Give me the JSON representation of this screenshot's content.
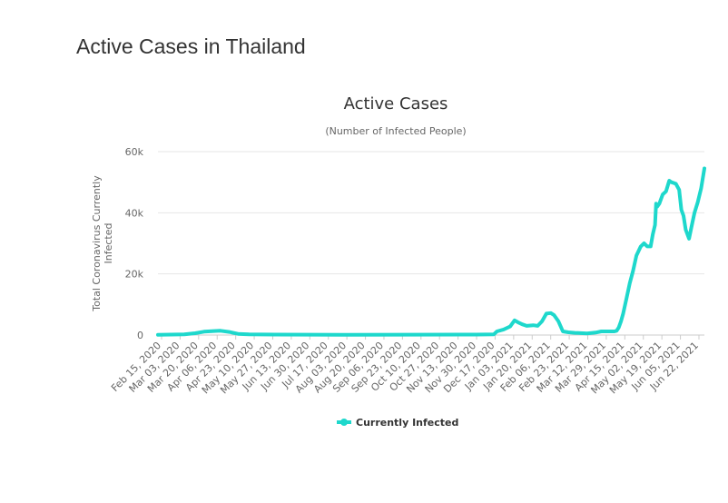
{
  "page": {
    "title": "Active Cases in Thailand"
  },
  "chart_data": {
    "type": "line",
    "title": "Active Cases",
    "subtitle": "(Number of Infected People)",
    "xlabel": "",
    "ylabel": "Total Coronavirus Currently Infected",
    "ylim": [
      0,
      60000
    ],
    "y_ticks": [
      0,
      20000,
      40000,
      60000
    ],
    "y_tick_labels": [
      "0",
      "20k",
      "40k",
      "60k"
    ],
    "x_tick_labels": [
      "Feb 15, 2020",
      "Mar 03, 2020",
      "Mar 20, 2020",
      "Apr 06, 2020",
      "Apr 23, 2020",
      "May 10, 2020",
      "May 27, 2020",
      "Jun 13, 2020",
      "Jun 30, 2020",
      "Jul 17, 2020",
      "Aug 03, 2020",
      "Aug 20, 2020",
      "Sep 06, 2020",
      "Sep 23, 2020",
      "Oct 10, 2020",
      "Oct 27, 2020",
      "Nov 13, 2020",
      "Nov 30, 2020",
      "Dec 17, 2020",
      "Jan 03, 2021",
      "Jan 20, 2021",
      "Feb 06, 2021",
      "Feb 23, 2021",
      "Mar 12, 2021",
      "Mar 29, 2021",
      "Apr 15, 2021",
      "May 02, 2021",
      "May 19, 2021",
      "Jun 05, 2021",
      "Jun 22, 2021"
    ],
    "grid": true,
    "legend_position": "bottom-center",
    "series": [
      {
        "name": "Currently Infected",
        "color": "#1ed8cc",
        "x": [
          "2020-02-15",
          "2020-03-10",
          "2020-03-20",
          "2020-03-28",
          "2020-04-06",
          "2020-04-12",
          "2020-04-20",
          "2020-04-28",
          "2020-05-08",
          "2020-06-01",
          "2020-08-01",
          "2020-10-01",
          "2020-12-01",
          "2020-12-17",
          "2020-12-20",
          "2020-12-26",
          "2021-01-01",
          "2021-01-05",
          "2021-01-08",
          "2021-01-12",
          "2021-01-16",
          "2021-01-22",
          "2021-01-26",
          "2021-01-30",
          "2021-02-03",
          "2021-02-07",
          "2021-02-10",
          "2021-02-14",
          "2021-02-18",
          "2021-02-23",
          "2021-03-01",
          "2021-03-12",
          "2021-03-20",
          "2021-03-25",
          "2021-04-01",
          "2021-04-06",
          "2021-04-08",
          "2021-04-10",
          "2021-04-12",
          "2021-04-14",
          "2021-04-17",
          "2021-04-20",
          "2021-04-23",
          "2021-04-26",
          "2021-04-30",
          "2021-05-03",
          "2021-05-06",
          "2021-05-09",
          "2021-05-11",
          "2021-05-13",
          "2021-05-14",
          "2021-05-15",
          "2021-05-17",
          "2021-05-20",
          "2021-05-23",
          "2021-05-26",
          "2021-05-28",
          "2021-06-01",
          "2021-06-04",
          "2021-06-06",
          "2021-06-08",
          "2021-06-10",
          "2021-06-13",
          "2021-06-15",
          "2021-06-18",
          "2021-06-21",
          "2021-06-24",
          "2021-06-27"
        ],
        "values": [
          100,
          200,
          600,
          1100,
          1300,
          1400,
          1000,
          400,
          200,
          150,
          100,
          120,
          150,
          200,
          1200,
          1800,
          2800,
          4800,
          4200,
          3500,
          3000,
          3200,
          3000,
          4500,
          7000,
          7200,
          6500,
          4500,
          1200,
          900,
          700,
          500,
          800,
          1200,
          1200,
          1200,
          1400,
          2500,
          4500,
          7000,
          12000,
          17000,
          21000,
          26000,
          29000,
          30000,
          29000,
          29000,
          33000,
          36000,
          43000,
          42000,
          43000,
          46000,
          47000,
          50500,
          50000,
          49500,
          47500,
          41000,
          39000,
          34500,
          31500,
          35000,
          40000,
          43500,
          48000,
          54500
        ]
      }
    ]
  }
}
